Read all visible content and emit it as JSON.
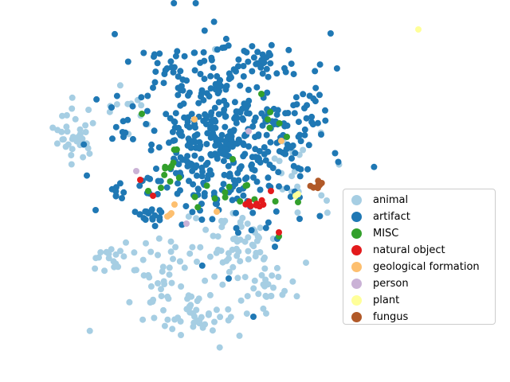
{
  "chart_data": {
    "type": "scatter",
    "title": "",
    "xlabel": "",
    "ylabel": "",
    "axes_visible": false,
    "grid": false,
    "legend_position": "center-right",
    "series": [
      {
        "name": "animal",
        "color": "#a6cee3",
        "clusters": [
          {
            "center": [
              95,
              170
            ],
            "spread": [
              14,
              18
            ],
            "count": 35
          },
          {
            "center": [
              148,
              325
            ],
            "spread": [
              14,
              10
            ],
            "count": 20
          },
          {
            "center": [
              200,
              330
            ],
            "spread": [
              18,
              20
            ],
            "count": 25
          },
          {
            "center": [
              290,
              305
            ],
            "spread": [
              28,
              22
            ],
            "count": 60
          },
          {
            "center": [
              245,
              395
            ],
            "spread": [
              38,
              18
            ],
            "count": 55
          },
          {
            "center": [
              335,
              360
            ],
            "spread": [
              18,
              15
            ],
            "count": 25
          },
          {
            "center": [
              370,
              215
            ],
            "spread": [
              20,
              30
            ],
            "count": 20
          },
          {
            "center": [
              160,
              150
            ],
            "spread": [
              15,
              20
            ],
            "count": 12
          }
        ],
        "points": [
          [
            270,
            62
          ],
          [
            340,
            372
          ],
          [
            227,
            421
          ],
          [
            410,
            252
          ]
        ]
      },
      {
        "name": "artifact",
        "color": "#1f78b4",
        "clusters": [
          {
            "center": [
              280,
              170
            ],
            "spread": [
              60,
              50
            ],
            "count": 440
          },
          {
            "center": [
              330,
              80
            ],
            "spread": [
              30,
              12
            ],
            "count": 30
          },
          {
            "center": [
              220,
              80
            ],
            "spread": [
              25,
              10
            ],
            "count": 15
          },
          {
            "center": [
              185,
              270
            ],
            "spread": [
              15,
              6
            ],
            "count": 18
          },
          {
            "center": [
              145,
              240
            ],
            "spread": [
              5,
              5
            ],
            "count": 8
          },
          {
            "center": [
              380,
              140
            ],
            "spread": [
              12,
              30
            ],
            "count": 15
          }
        ],
        "points": [
          [
            120,
            264
          ],
          [
            140,
            135
          ],
          [
            403,
            169
          ],
          [
            376,
            275
          ],
          [
            287,
            350
          ],
          [
            318,
            398
          ],
          [
            345,
            310
          ],
          [
            348,
            300
          ]
        ]
      },
      {
        "name": "MISC",
        "color": "#33a02c",
        "clusters": [
          {
            "center": [
              210,
              210
            ],
            "spread": [
              8,
              12
            ],
            "count": 10
          },
          {
            "center": [
              290,
              245
            ],
            "spread": [
              25,
              8
            ],
            "count": 12
          },
          {
            "center": [
              340,
              150
            ],
            "spread": [
              8,
              6
            ],
            "count": 4
          }
        ],
        "points": [
          [
            178,
            143
          ],
          [
            328,
            118
          ],
          [
            186,
            240
          ],
          [
            374,
            254
          ],
          [
            350,
            297
          ],
          [
            360,
            172
          ],
          [
            292,
            200
          ],
          [
            202,
            236
          ]
        ]
      },
      {
        "name": "natural object",
        "color": "#e31a1c",
        "clusters": [
          {
            "center": [
              320,
              257
            ],
            "spread": [
              6,
              4
            ],
            "count": 10
          }
        ],
        "points": [
          [
            176,
            226
          ],
          [
            192,
            246
          ],
          [
            340,
            240
          ],
          [
            350,
            292
          ]
        ]
      },
      {
        "name": "geological formation",
        "color": "#fdbf6f",
        "points": [
          [
            213,
            270
          ],
          [
            219,
            257
          ],
          [
            244,
            150
          ],
          [
            353,
            177
          ],
          [
            272,
            266
          ],
          [
            210,
            272
          ],
          [
            215,
            268
          ]
        ]
      },
      {
        "name": "person",
        "color": "#cab2d6",
        "points": [
          [
            171,
            215
          ],
          [
            234,
            281
          ],
          [
            312,
            165
          ]
        ]
      },
      {
        "name": "plant",
        "color": "#ffff99",
        "points": [
          [
            525,
            37
          ],
          [
            374,
            244
          ],
          [
            371,
            246
          ]
        ]
      },
      {
        "name": "fungus",
        "color": "#b15928",
        "clusters": [
          {
            "center": [
              396,
              232
            ],
            "spread": [
              4,
              3
            ],
            "count": 7
          }
        ]
      }
    ]
  }
}
